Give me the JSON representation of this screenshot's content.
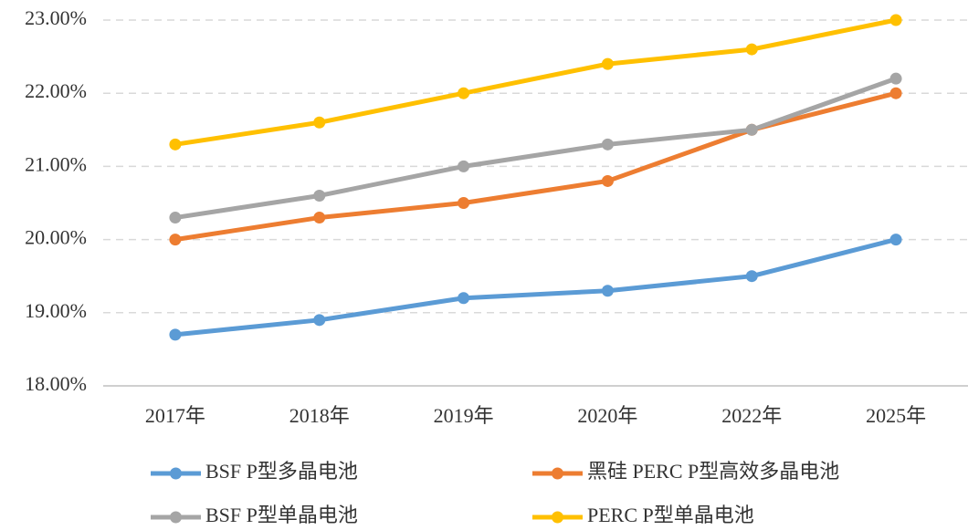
{
  "chart_data": {
    "type": "line",
    "categories": [
      "2017年",
      "2018年",
      "2019年",
      "2020年",
      "2022年",
      "2025年"
    ],
    "series": [
      {
        "name": "BSF P型多晶电池",
        "color": "#5b9bd5",
        "values": [
          18.7,
          18.9,
          19.2,
          19.3,
          19.5,
          20.0
        ]
      },
      {
        "name": "黑硅 PERC P型高效多晶电池",
        "color": "#ed7d31",
        "values": [
          20.0,
          20.3,
          20.5,
          20.8,
          21.5,
          22.0
        ]
      },
      {
        "name": "BSF P型单晶电池",
        "color": "#a5a5a5",
        "values": [
          20.3,
          20.6,
          21.0,
          21.3,
          21.5,
          22.2
        ]
      },
      {
        "name": "PERC P型单晶电池",
        "color": "#ffc000",
        "values": [
          21.3,
          21.6,
          22.0,
          22.4,
          22.6,
          23.0
        ]
      }
    ],
    "ylim": [
      18,
      23
    ],
    "yticks": [
      {
        "value": 18,
        "label": "18.00%"
      },
      {
        "value": 19,
        "label": "19.00%"
      },
      {
        "value": 20,
        "label": "20.00%"
      },
      {
        "value": 21,
        "label": "21.00%"
      },
      {
        "value": 22,
        "label": "22.00%"
      },
      {
        "value": 23,
        "label": "23.00%"
      }
    ],
    "grid": true,
    "legend": "bottom"
  }
}
